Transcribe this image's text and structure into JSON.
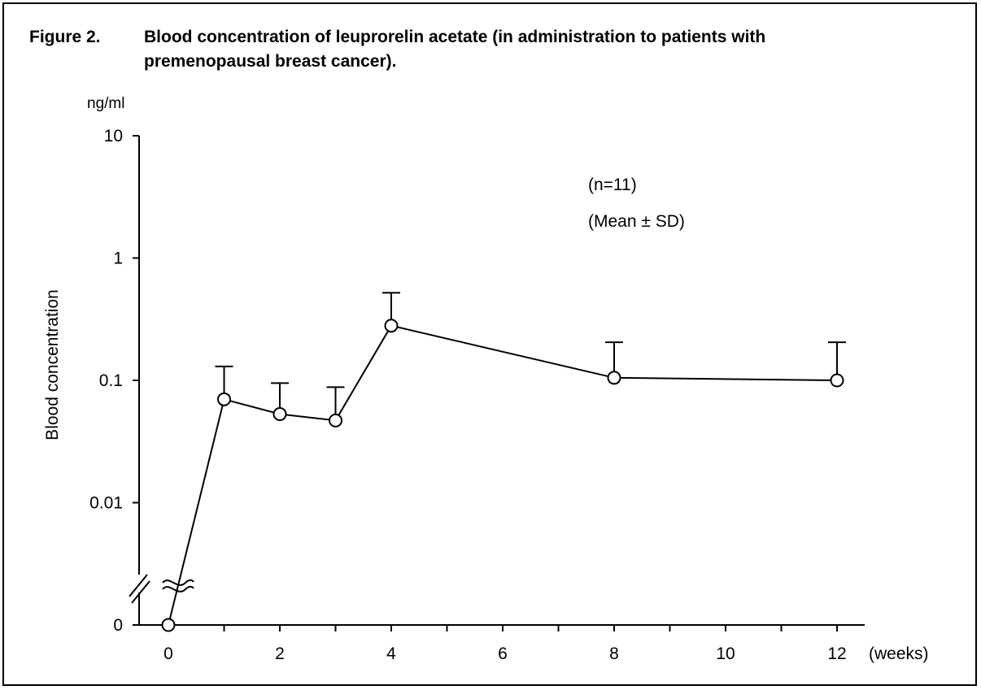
{
  "figure": {
    "label": "Figure 2.",
    "title": "Blood concentration of leuprorelin acetate (in administration to patients with premenopausal breast cancer)."
  },
  "chart_data": {
    "type": "line",
    "ylabel": "Blood concentration",
    "yunit": "ng/ml",
    "xunit": "(weeks)",
    "yscale": "log",
    "y_ticks": [
      "10",
      "1",
      "0.1",
      "0.01",
      "0"
    ],
    "y_axis_break": true,
    "x_ticks": [
      0,
      2,
      4,
      6,
      8,
      10,
      12
    ],
    "x_minor_ticks": [
      1,
      3,
      5,
      7,
      9,
      11
    ],
    "xlim": [
      0,
      12
    ],
    "annotations": [
      "(n=11)",
      "(Mean ± SD)"
    ],
    "series": [
      {
        "points": [
          {
            "x": 0,
            "y": 0,
            "sd_upper": null
          },
          {
            "x": 1,
            "y": 0.07,
            "sd_upper": 0.13
          },
          {
            "x": 2,
            "y": 0.053,
            "sd_upper": 0.095
          },
          {
            "x": 3,
            "y": 0.047,
            "sd_upper": 0.088
          },
          {
            "x": 4,
            "y": 0.28,
            "sd_upper": 0.52
          },
          {
            "x": 8,
            "y": 0.105,
            "sd_upper": 0.205
          },
          {
            "x": 12,
            "y": 0.1,
            "sd_upper": 0.205
          }
        ]
      }
    ]
  }
}
